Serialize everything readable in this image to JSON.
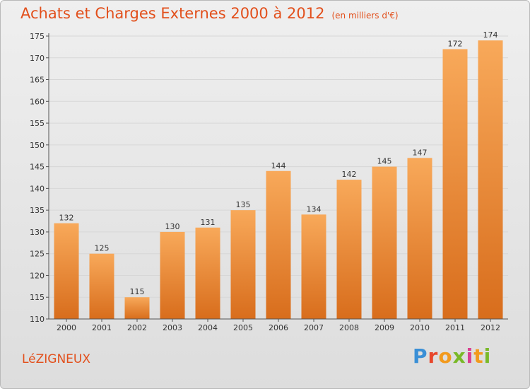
{
  "header": {
    "title": "Achats et Charges Externes 2000 à 2012",
    "unit": "(en milliers d'€)"
  },
  "footer": {
    "commune": "LéZIGNEUX",
    "brand": [
      "P",
      "r",
      "o",
      "x",
      "i",
      "t",
      "i"
    ]
  },
  "colors": {
    "title": "#e24f1b",
    "bar_light": "#f8a95a",
    "bar_dark": "#d86d1c",
    "grid": "#d7d7d7",
    "axis": "#555555"
  },
  "chart_data": {
    "type": "bar",
    "title": "Achats et Charges Externes 2000 à 2012",
    "xlabel": "",
    "ylabel": "",
    "categories": [
      "2000",
      "2001",
      "2002",
      "2003",
      "2004",
      "2005",
      "2006",
      "2007",
      "2008",
      "2009",
      "2010",
      "2011",
      "2012"
    ],
    "values": [
      132,
      125,
      115,
      130,
      131,
      135,
      144,
      134,
      142,
      145,
      147,
      172,
      174
    ],
    "ylim": [
      110,
      175
    ],
    "yticks": [
      110,
      115,
      120,
      125,
      130,
      135,
      140,
      145,
      150,
      155,
      160,
      165,
      170,
      175
    ],
    "grid": true,
    "legend": "none"
  }
}
